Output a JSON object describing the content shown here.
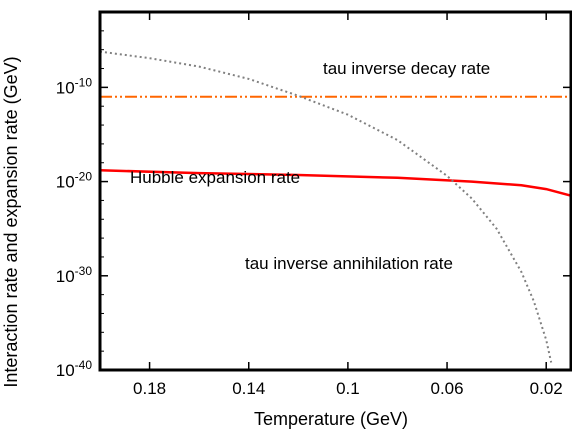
{
  "chart_data": {
    "type": "line",
    "title": "",
    "xlabel": "Temperature (GeV)",
    "ylabel": "Interaction rate and expansion rate (GeV)",
    "x_axis": {
      "reversed": true,
      "range": [
        0.01,
        0.2
      ],
      "ticks": [
        0.18,
        0.14,
        0.1,
        0.06,
        0.02
      ],
      "tick_labels": [
        "0.18",
        "0.14",
        "0.1",
        "0.06",
        "0.02"
      ]
    },
    "y_axis": {
      "scale": "log",
      "range_exponent": [
        -40,
        -2
      ],
      "ticks_exponent": [
        -10,
        -20,
        -30,
        -40
      ],
      "tick_base": "10",
      "tick_exponents": [
        "-10",
        "-20",
        "-30",
        "-40"
      ]
    },
    "grid": false,
    "series": [
      {
        "name": "tau inverse decay rate",
        "style": "dash-dot-dot",
        "color": "#ff6600",
        "x": [
          0.2,
          0.01
        ],
        "log10_y": [
          -11,
          -11
        ]
      },
      {
        "name": "Hubble expansion rate",
        "style": "solid",
        "color": "#ff0000",
        "x": [
          0.2,
          0.16,
          0.12,
          0.08,
          0.05,
          0.03,
          0.02,
          0.01
        ],
        "log10_y": [
          -18.8,
          -19.1,
          -19.3,
          -19.6,
          -20.0,
          -20.4,
          -20.8,
          -21.5
        ]
      },
      {
        "name": "tau inverse annihilation rate",
        "style": "dotted",
        "color": "#808080",
        "x": [
          0.2,
          0.18,
          0.16,
          0.14,
          0.12,
          0.1,
          0.08,
          0.06,
          0.05,
          0.04,
          0.03,
          0.025,
          0.02,
          0.018
        ],
        "log10_y": [
          -6.2,
          -6.9,
          -7.8,
          -9.1,
          -10.9,
          -12.9,
          -15.6,
          -19.4,
          -21.8,
          -25.0,
          -29.6,
          -32.7,
          -36.8,
          -39.2
        ]
      }
    ]
  }
}
